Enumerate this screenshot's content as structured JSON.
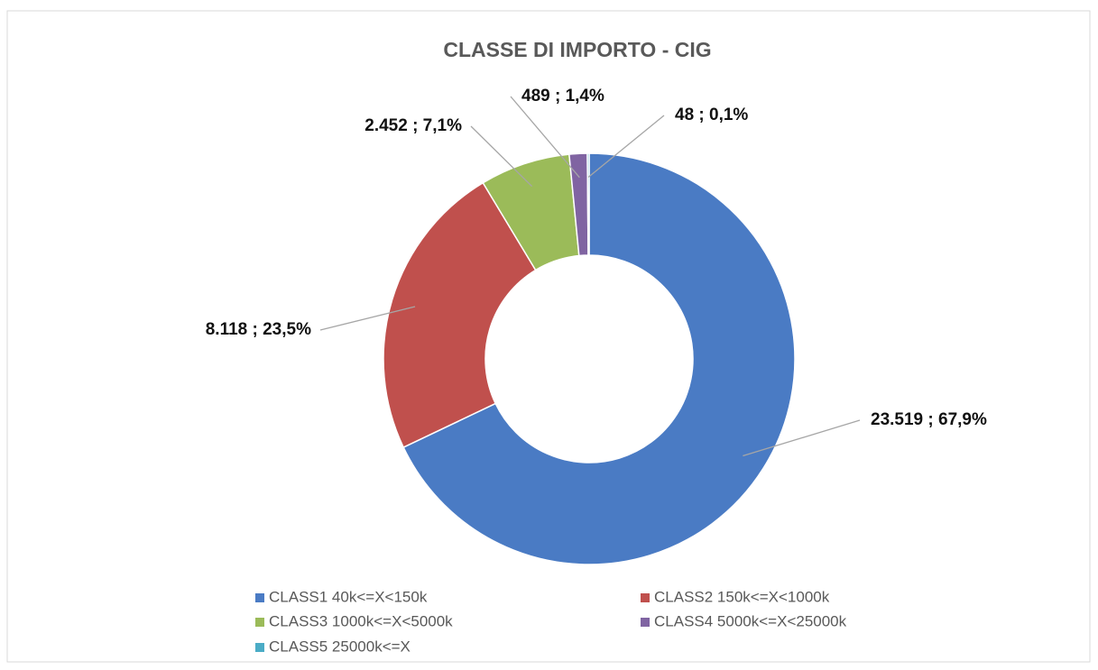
{
  "chart_data": {
    "type": "doughnut",
    "title": "CLASSE DI IMPORTO - CIG",
    "categories": [
      "CLASS1 40k<=X<150k",
      "CLASS2 150k<=X<1000k",
      "CLASS3 1000k<=X<5000k",
      "CLASS4 5000k<=X<25000k",
      "CLASS5 25000k<=X"
    ],
    "values": [
      23519,
      8118,
      2452,
      489,
      48
    ],
    "value_labels": [
      "23.519 ; 67,9%",
      "8.118 ; 23,5%",
      "2.452 ; 7,1%",
      "489 ; 1,4%",
      "48 ; 0,1%"
    ],
    "colors": [
      "#4a7bc4",
      "#c0504d",
      "#9bbb59",
      "#8064a2",
      "#4bacc6"
    ],
    "legend": "bottom"
  }
}
